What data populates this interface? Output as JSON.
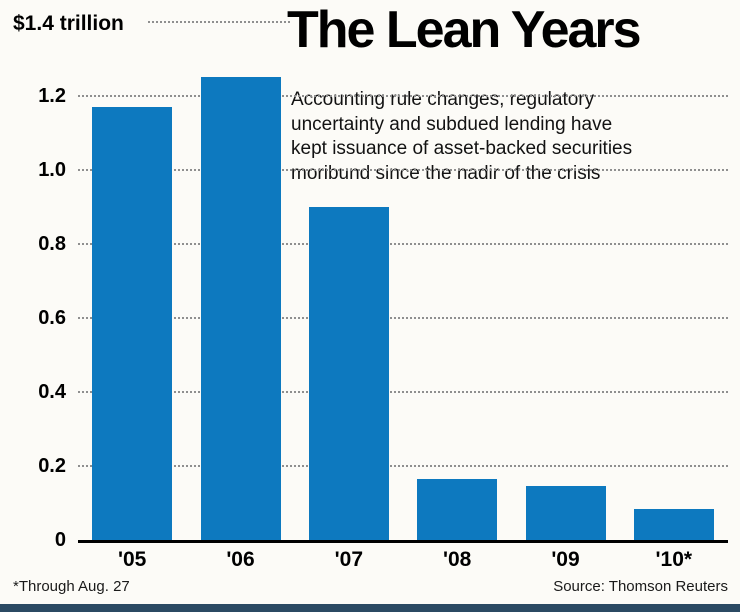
{
  "chart_data": {
    "type": "bar",
    "title": "The Lean Years",
    "subtitle": "Accounting rule changes, regulatory\nuncertainty and subdued lending have\nkept issuance of asset-backed securities\nmoribund since the nadir of the crisis",
    "y_top_label": "$1.4 trillion",
    "categories": [
      "'05",
      "'06",
      "'07",
      "'08",
      "'09",
      "'10*"
    ],
    "values": [
      1.17,
      1.25,
      0.9,
      0.165,
      0.145,
      0.085
    ],
    "ylim": [
      0,
      1.4
    ],
    "yticks": [
      0,
      0.2,
      0.4,
      0.6,
      0.8,
      1.0,
      1.2
    ],
    "ytick_labels": [
      "0",
      "0.2",
      "0.4",
      "0.6",
      "0.8",
      "1.0",
      "1.2"
    ],
    "xlabel": "",
    "ylabel": "$ trillion",
    "bar_color": "#0d79bf",
    "grid": "dotted-horizontal",
    "legend": "none"
  },
  "footer": {
    "footnote": "*Through Aug. 27",
    "source": "Source: Thomson Reuters"
  }
}
